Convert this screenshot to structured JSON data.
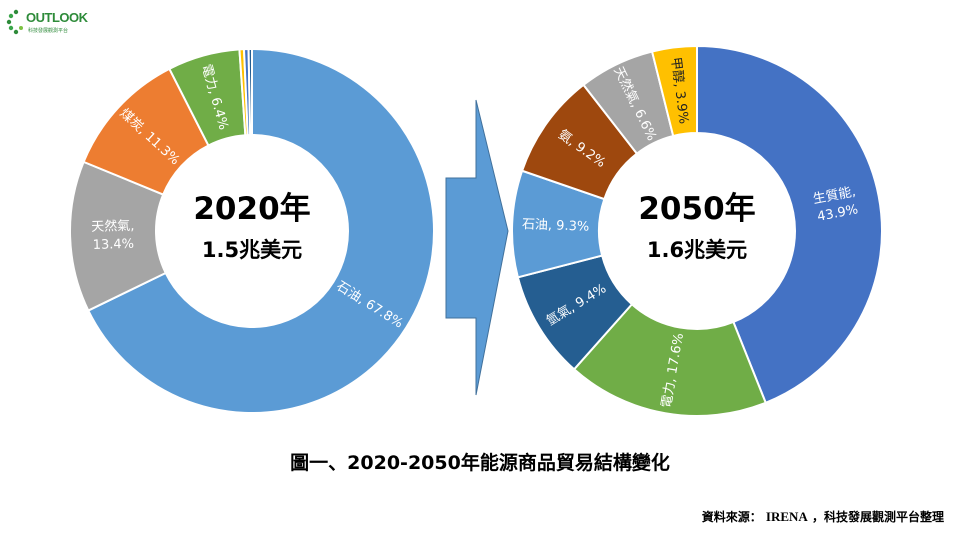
{
  "logo": {
    "text": "OUTLOOK",
    "subtext": "科技發展觀測平台"
  },
  "caption": "圖一、2020-2050年能源商品貿易結構變化",
  "source": {
    "prefix": "資料來源：",
    "org": "IRENA",
    "suffix": "，科技發展觀測平台整理"
  },
  "colors": {
    "oil": "#5B9BD5",
    "gas": "#A5A5A5",
    "coal": "#ED7D31",
    "power": "#70AD47",
    "biomass": "#4472C4",
    "hydrogen": "#255E91",
    "ammonia": "#9E480E",
    "methanol": "#FFC000",
    "arrow": "#5B9BD5"
  },
  "chart_data": [
    {
      "type": "pie",
      "variant": "donut",
      "center_title": "2020年",
      "center_subtitle": "1.5兆美元",
      "slices": [
        {
          "label": "石油",
          "value": 67.8,
          "label_text": "石油, 67.8%",
          "color_key": "oil"
        },
        {
          "label": "天然氣",
          "value": 13.4,
          "label_text": "天然氣,|13.4%",
          "color_key": "gas"
        },
        {
          "label": "煤炭",
          "value": 11.3,
          "label_text": "煤炭, 11.3%",
          "color_key": "coal"
        },
        {
          "label": "電力",
          "value": 6.4,
          "label_text": "電力, 6.4%",
          "color_key": "power"
        },
        {
          "label": "",
          "value": 0.4,
          "label_text": "",
          "color_key": "methanol"
        },
        {
          "label": "",
          "value": 0.4,
          "label_text": "",
          "color_key": "biomass"
        },
        {
          "label": "",
          "value": 0.3,
          "label_text": "",
          "color_key": "hydrogen"
        }
      ]
    },
    {
      "type": "pie",
      "variant": "donut",
      "center_title": "2050年",
      "center_subtitle": "1.6兆美元",
      "slices": [
        {
          "label": "生質能",
          "value": 43.9,
          "label_text": "生質能,|43.9%",
          "color_key": "biomass"
        },
        {
          "label": "電力",
          "value": 17.6,
          "label_text": "電力, 17.6%",
          "color_key": "power"
        },
        {
          "label": "氫氣",
          "value": 9.4,
          "label_text": "氫氣, 9.4%",
          "color_key": "hydrogen"
        },
        {
          "label": "石油",
          "value": 9.3,
          "label_text": "石油, 9.3%",
          "color_key": "oil"
        },
        {
          "label": "氨",
          "value": 9.2,
          "label_text": "氨, 9.2%",
          "color_key": "ammonia"
        },
        {
          "label": "天然氣",
          "value": 6.6,
          "label_text": "天然氣, 6.6%",
          "color_key": "gas"
        },
        {
          "label": "甲醇",
          "value": 3.9,
          "label_text": "甲醇, 3.9%",
          "color_key": "methanol"
        }
      ]
    }
  ]
}
